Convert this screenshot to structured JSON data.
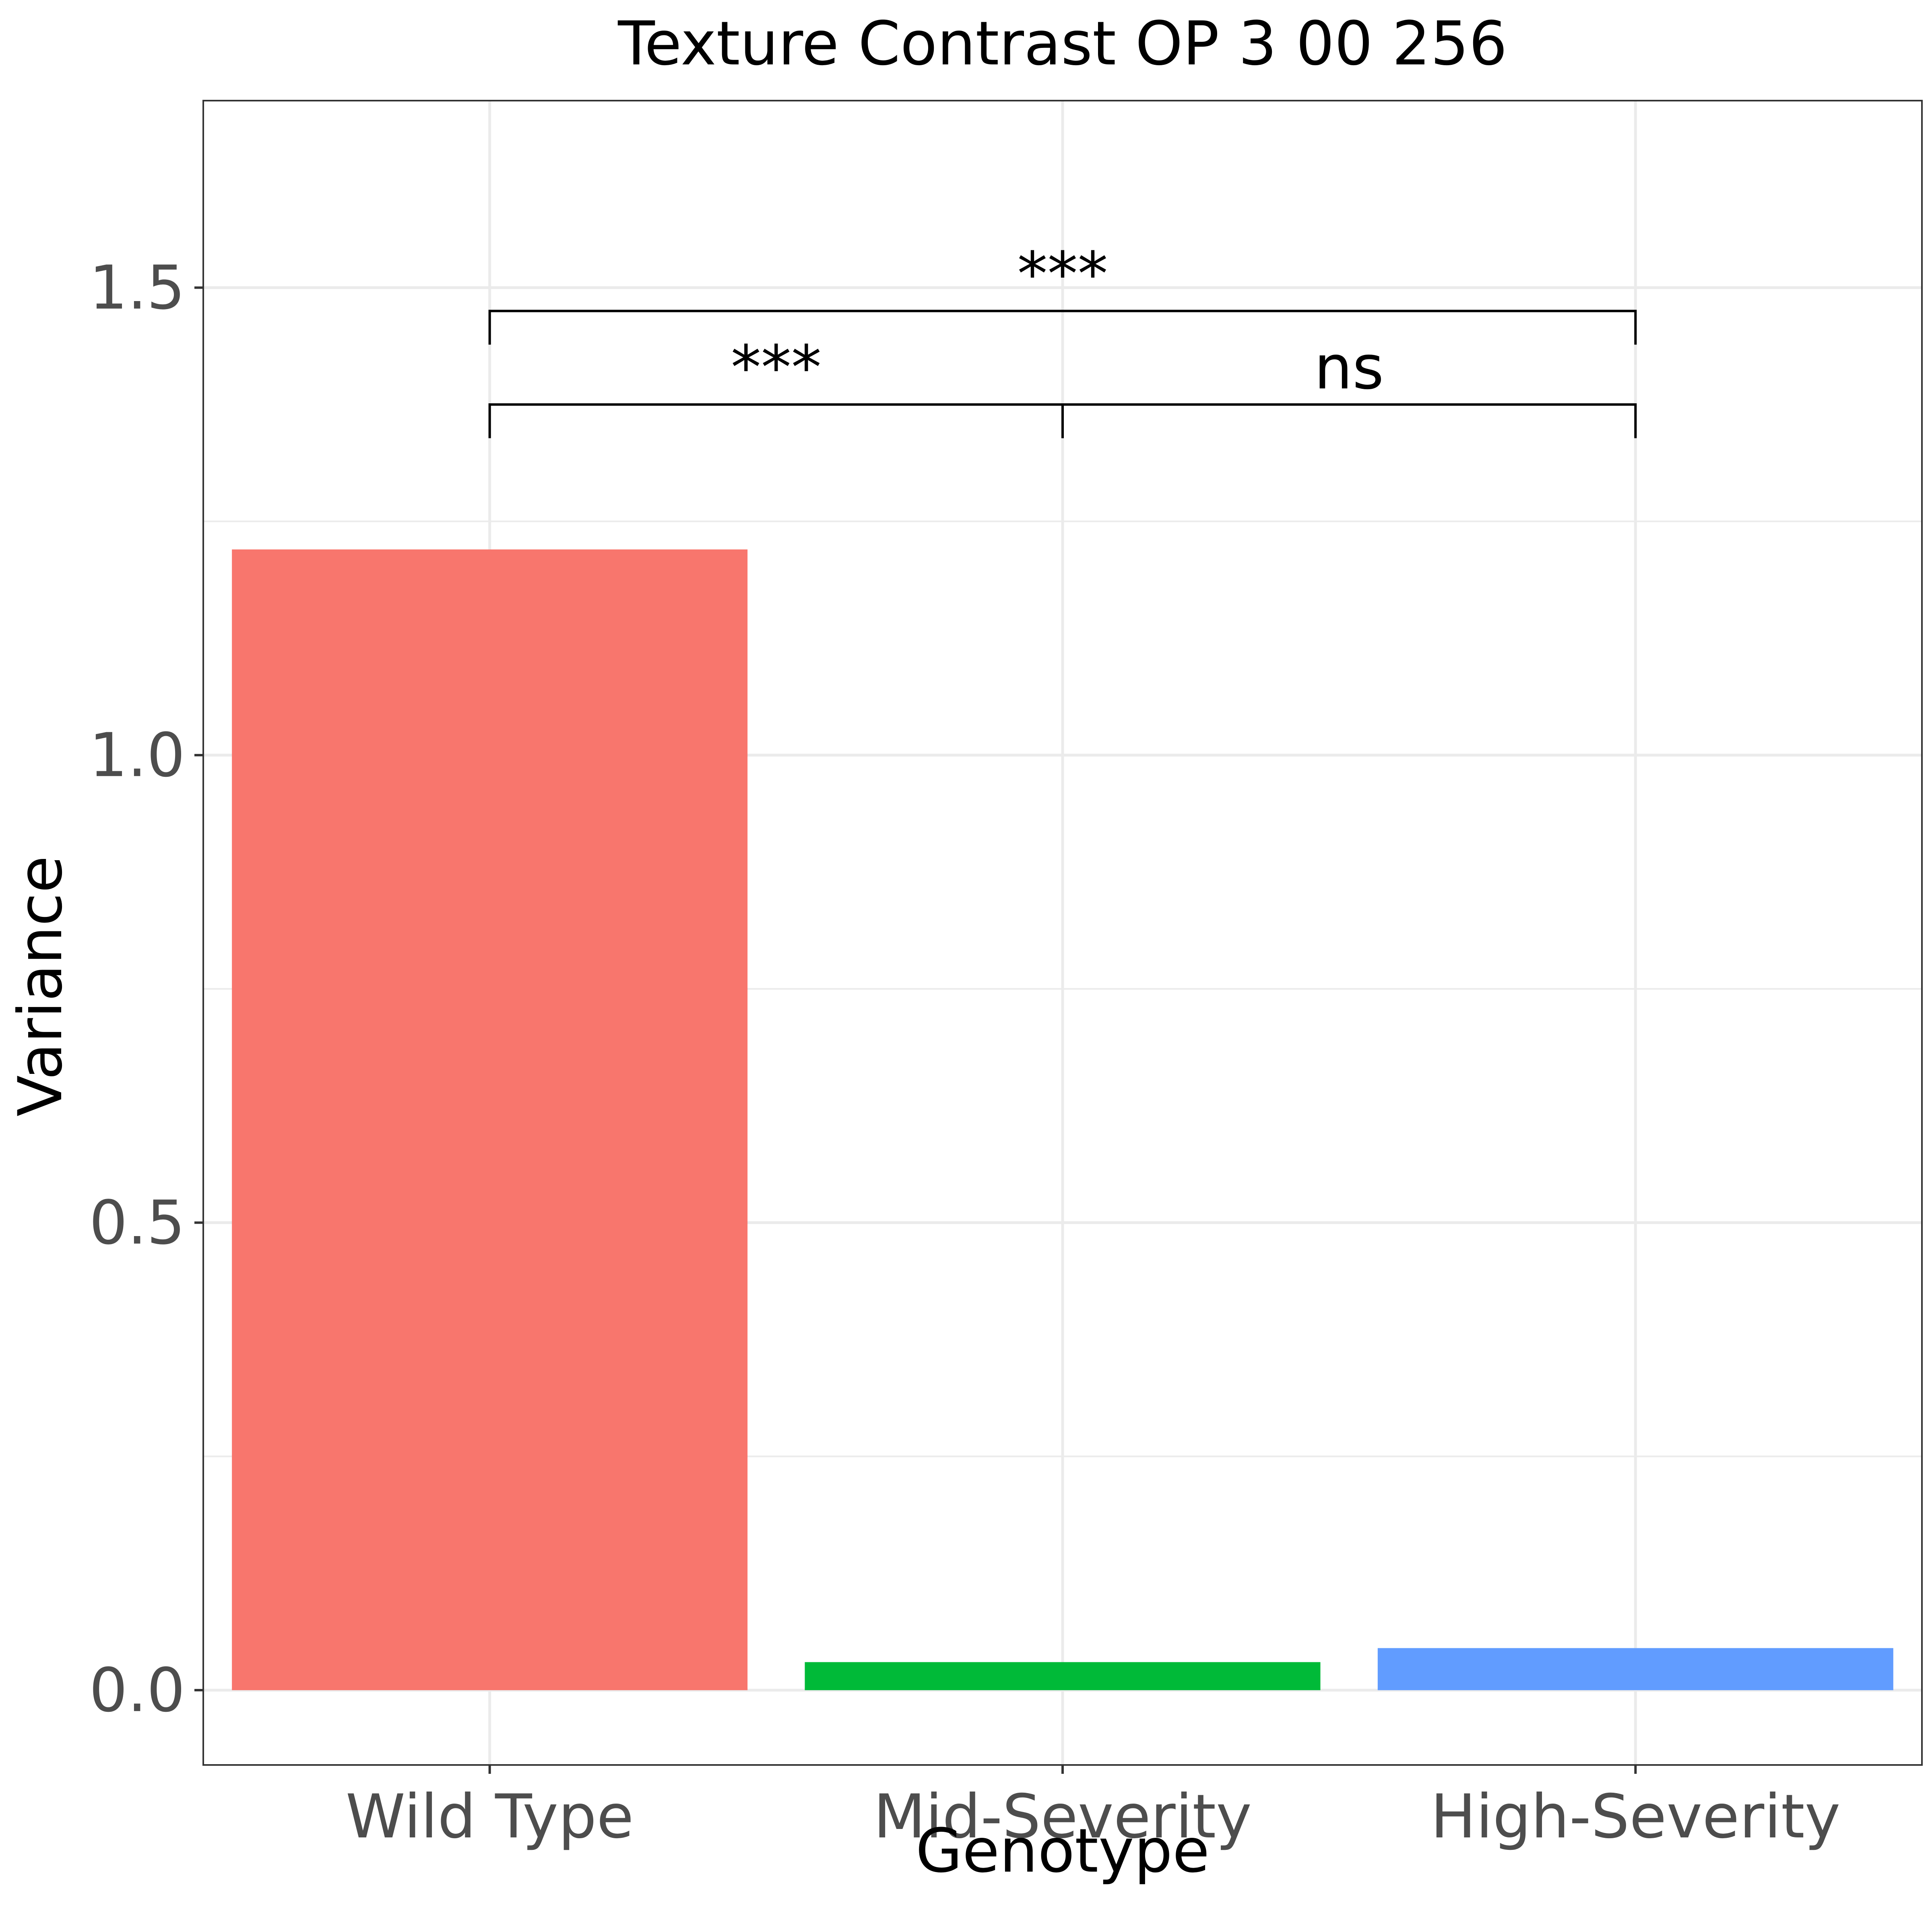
{
  "chart_data": {
    "type": "bar",
    "title": "Texture Contrast OP 3 00 256",
    "xlabel": "Genotype",
    "ylabel": "Variance",
    "categories": [
      "Wild Type",
      "Mid-Severity",
      "High-Severity"
    ],
    "values": [
      1.22,
      0.03,
      0.045
    ],
    "colors": [
      "#F8766D",
      "#00BA38",
      "#619CFF"
    ],
    "ylim": [
      -0.08,
      1.7
    ],
    "yticks": [
      0.0,
      0.5,
      1.0,
      1.5
    ],
    "ytick_labels": [
      "0.0",
      "0.5",
      "1.0",
      "1.5"
    ],
    "grid": true,
    "legend": "none",
    "annotations": [
      {
        "from": "Wild Type",
        "to": "Mid-Severity",
        "y": 1.375,
        "label": "***"
      },
      {
        "from": "Mid-Severity",
        "to": "High-Severity",
        "y": 1.375,
        "label": "ns"
      },
      {
        "from": "Wild Type",
        "to": "High-Severity",
        "y": 1.475,
        "label": "***"
      }
    ]
  }
}
